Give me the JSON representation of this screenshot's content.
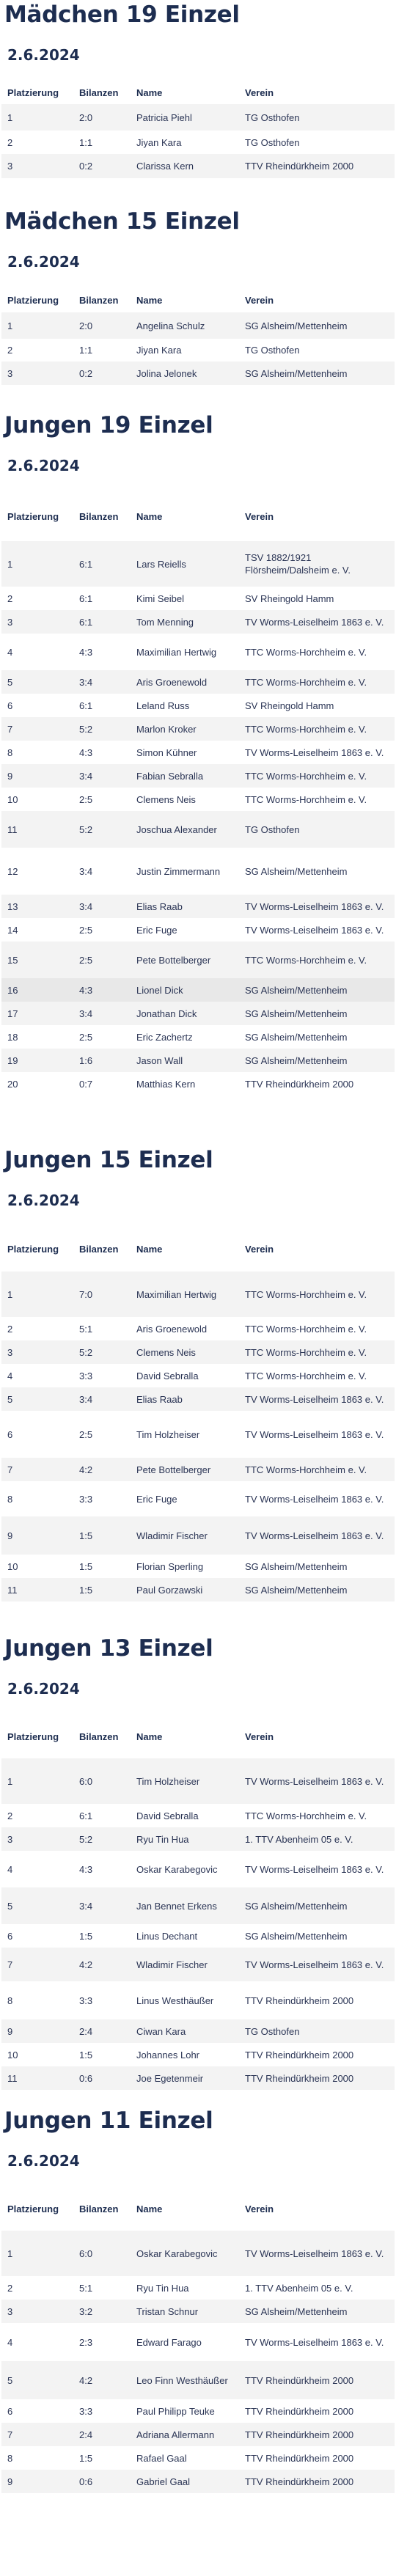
{
  "headers": {
    "place": "Platzierung",
    "bilanz": "Bilanzen",
    "name": "Name",
    "verein": "Verein"
  },
  "sections": [
    {
      "title": "Mädchen 19 Einzel",
      "date": "2.6.2024",
      "rows": [
        [
          "1",
          "2:0",
          "Patricia Piehl",
          "TG Osthofen"
        ],
        [
          "2",
          "1:1",
          "Jiyan Kara",
          "TG Osthofen"
        ],
        [
          "3",
          "0:2",
          "Clarissa Kern",
          "TTV Rheindürkheim 2000"
        ]
      ]
    },
    {
      "title": "Mädchen 15 Einzel",
      "date": "2.6.2024",
      "rows": [
        [
          "1",
          "2:0",
          "Angelina Schulz",
          "SG Alsheim/Mettenheim"
        ],
        [
          "2",
          "1:1",
          "Jiyan Kara",
          "TG Osthofen"
        ],
        [
          "3",
          "0:2",
          "Jolina Jelonek",
          "SG Alsheim/Mettenheim"
        ]
      ]
    },
    {
      "title": "Jungen 19 Einzel",
      "date": "2.6.2024",
      "rows": [
        [
          "1",
          "6:1",
          "Lars Reiells",
          "TSV 1882/1921 Flörsheim/Dalsheim e. V."
        ],
        [
          "2",
          "6:1",
          "Kimi Seibel",
          "SV Rheingold Hamm"
        ],
        [
          "3",
          "6:1",
          "Tom Menning",
          "TV Worms-Leiselheim 1863 e. V."
        ],
        [
          "4",
          "4:3",
          "Maximilian Hertwig",
          "TTC Worms-Horchheim e. V."
        ],
        [
          "5",
          "3:4",
          "Aris Groenewold",
          "TTC Worms-Horchheim e. V."
        ],
        [
          "6",
          "6:1",
          "Leland Russ",
          "SV Rheingold Hamm"
        ],
        [
          "7",
          "5:2",
          "Marlon Kroker",
          "TTC Worms-Horchheim e. V."
        ],
        [
          "8",
          "4:3",
          "Simon Kühner",
          "TV Worms-Leiselheim 1863 e. V."
        ],
        [
          "9",
          "3:4",
          "Fabian Sebralla",
          "TTC Worms-Horchheim e. V."
        ],
        [
          "10",
          "2:5",
          "Clemens Neis",
          "TTC Worms-Horchheim e. V."
        ],
        [
          "11",
          "5:2",
          "Joschua Alexander",
          "TG Osthofen"
        ],
        [
          "12",
          "3:4",
          "Justin Zimmermann",
          "SG Alsheim/Mettenheim"
        ],
        [
          "13",
          "3:4",
          "Elias Raab",
          "TV Worms-Leiselheim 1863 e. V."
        ],
        [
          "14",
          "2:5",
          "Eric Fuge",
          "TV Worms-Leiselheim 1863 e. V."
        ],
        [
          "15",
          "2:5",
          "Pete Bottelberger",
          "TTC Worms-Horchheim e. V."
        ],
        [
          "16",
          "4:3",
          "Lionel Dick",
          "SG Alsheim/Mettenheim"
        ],
        [
          "17",
          "3:4",
          "Jonathan Dick",
          "SG Alsheim/Mettenheim"
        ],
        [
          "18",
          "2:5",
          "Eric Zachertz",
          "SG Alsheim/Mettenheim"
        ],
        [
          "19",
          "1:6",
          "Jason Wall",
          "SG Alsheim/Mettenheim"
        ],
        [
          "20",
          "0:7",
          "Matthias Kern",
          "TTV Rheindürkheim 2000"
        ]
      ]
    },
    {
      "title": "Jungen 15 Einzel",
      "date": "2.6.2024",
      "rows": [
        [
          "1",
          "7:0",
          "Maximilian Hertwig",
          "TTC Worms-Horchheim e. V."
        ],
        [
          "2",
          "5:1",
          "Aris Groenewold",
          "TTC Worms-Horchheim e. V."
        ],
        [
          "3",
          "5:2",
          "Clemens Neis",
          "TTC Worms-Horchheim e. V."
        ],
        [
          "4",
          "3:3",
          "David Sebralla",
          "TTC Worms-Horchheim e. V."
        ],
        [
          "5",
          "3:4",
          "Elias Raab",
          "TV Worms-Leiselheim 1863 e. V."
        ],
        [
          "6",
          "2:5",
          "Tim Holzheiser",
          "TV Worms-Leiselheim 1863 e. V."
        ],
        [
          "7",
          "4:2",
          "Pete Bottelberger",
          "TTC Worms-Horchheim e. V."
        ],
        [
          "8",
          "3:3",
          "Eric Fuge",
          "TV Worms-Leiselheim 1863 e. V."
        ],
        [
          "9",
          "1:5",
          "Wladimir Fischer",
          "TV Worms-Leiselheim 1863 e. V."
        ],
        [
          "10",
          "1:5",
          "Florian Sperling",
          "SG Alsheim/Mettenheim"
        ],
        [
          "11",
          "1:5",
          "Paul Gorzawski",
          "SG Alsheim/Mettenheim"
        ]
      ]
    },
    {
      "title": "Jungen 13 Einzel",
      "date": "2.6.2024",
      "rows": [
        [
          "1",
          "6:0",
          "Tim Holzheiser",
          "TV Worms-Leiselheim 1863 e. V."
        ],
        [
          "2",
          "6:1",
          "David Sebralla",
          "TTC Worms-Horchheim e. V."
        ],
        [
          "3",
          "5:2",
          "Ryu Tin Hua",
          "1. TTV Abenheim 05 e. V."
        ],
        [
          "4",
          "4:3",
          "Oskar Karabegovic",
          "TV Worms-Leiselheim 1863 e. V."
        ],
        [
          "5",
          "3:4",
          "Jan Bennet Erkens",
          "SG Alsheim/Mettenheim"
        ],
        [
          "6",
          "1:5",
          "Linus Dechant",
          "SG Alsheim/Mettenheim"
        ],
        [
          "7",
          "4:2",
          "Wladimir Fischer",
          "TV Worms-Leiselheim 1863 e. V."
        ],
        [
          "8",
          "3:3",
          "Linus Westhäußer",
          "TTV Rheindürkheim 2000"
        ],
        [
          "9",
          "2:4",
          "Ciwan Kara",
          "TG Osthofen"
        ],
        [
          "10",
          "1:5",
          "Johannes Lohr",
          "TTV Rheindürkheim 2000"
        ],
        [
          "11",
          "0:6",
          "Joe Egetenmeir",
          "TTV Rheindürkheim 2000"
        ]
      ]
    },
    {
      "title": "Jungen 11 Einzel",
      "date": "2.6.2024",
      "rows": [
        [
          "1",
          "6:0",
          "Oskar Karabegovic",
          "TV Worms-Leiselheim 1863 e. V."
        ],
        [
          "2",
          "5:1",
          "Ryu Tin Hua",
          "1. TTV Abenheim 05 e. V."
        ],
        [
          "3",
          "3:2",
          "Tristan Schnur",
          "SG Alsheim/Mettenheim"
        ],
        [
          "4",
          "2:3",
          "Edward Farago",
          "TV Worms-Leiselheim 1863 e. V."
        ],
        [
          "5",
          "4:2",
          "Leo Finn Westhäußer",
          "TTV Rheindürkheim 2000"
        ],
        [
          "6",
          "3:3",
          "Paul Philipp Teuke",
          "TTV Rheindürkheim 2000"
        ],
        [
          "7",
          "2:4",
          "Adriana Allermann",
          "TTV Rheindürkheim 2000"
        ],
        [
          "8",
          "1:5",
          "Rafael Gaal",
          "TTV Rheindürkheim 2000"
        ],
        [
          "9",
          "0:6",
          "Gabriel Gaal",
          "TTV Rheindürkheim 2000"
        ]
      ]
    }
  ]
}
